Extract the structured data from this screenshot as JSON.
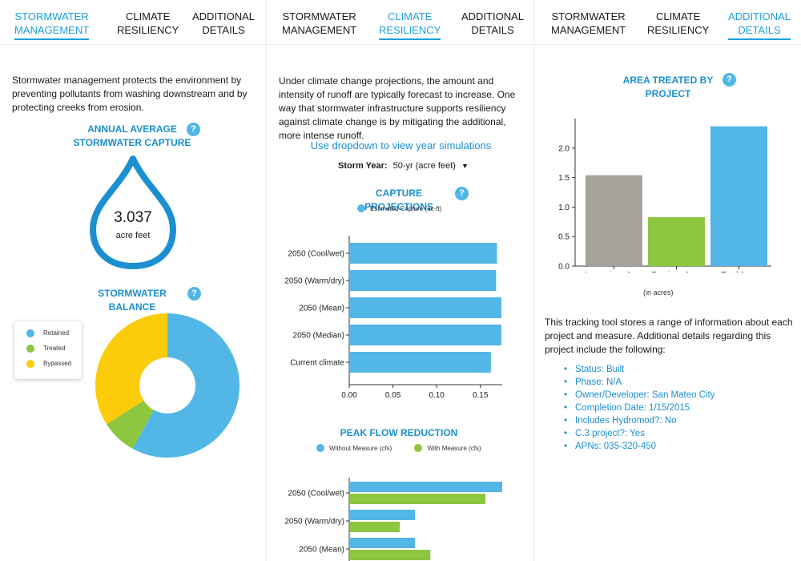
{
  "colors": {
    "accent": "#1ba1dd",
    "retained": "#52b6e6",
    "treated": "#8dc63f",
    "bypassed": "#fccc0a",
    "impervious": "#a6a19b"
  },
  "tabs": [
    "Stormwater Management",
    "Climate Resiliency",
    "Additional Details"
  ],
  "panel1": {
    "intro": "Stormwater management protects the environment by preventing pollutants from washing downstream and by protecting creeks from erosion.",
    "capture_title": "Annual Average Stormwater Capture",
    "capture_value": "3.037",
    "capture_unit": "acre feet",
    "balance_title": "Stormwater Balance",
    "help_glyph": "?"
  },
  "panel2": {
    "intro": "Under climate change projections, the amount and intensity of runoff are typically forecast to increase. One way that stormwater infrastructure supports resiliency against climate change is by mitigating the additional, more intense runoff.",
    "dropdown_prompt": "Use dropdown to view year simulations",
    "storm_year_label": "Storm Year:",
    "storm_year_value": "50-yr (acre feet)",
    "capture_proj_title": "Capture Projections",
    "peak_flow_title": "Peak Flow Reduction"
  },
  "panel3": {
    "area_title": "Area Treated by Project",
    "area_unit_note": "(in acres)",
    "intro": "This tracking tool stores a range of information about each project and measure. Additional details regarding this project include the following:",
    "details": [
      "Status: Built",
      "Phase: N/A",
      "Owner/Developer: San Mateo City",
      "Completion Date: 1/15/2015",
      "Includes Hydromod?: No",
      "C.3 project?: Yes",
      "APNs: 035-320-450"
    ]
  },
  "chart_data": [
    {
      "type": "pie",
      "title": "Stormwater Balance",
      "categories": [
        "Retained",
        "Treated",
        "Bypassed"
      ],
      "values": [
        0.58,
        0.08,
        0.34
      ],
      "legend": "top-left"
    },
    {
      "type": "bar",
      "orientation": "horizontal",
      "title": "Capture Projections",
      "categories": [
        "2050 (Cool/wet)",
        "2050 (Warm/dry)",
        "2050 (Mean)",
        "2050 (Median)",
        "Current climate"
      ],
      "series": [
        {
          "name": "Estimated Capture (ac-ft)",
          "values": [
            0.169,
            0.168,
            0.174,
            0.174,
            0.162
          ]
        }
      ],
      "xticks": [
        "0.00",
        "0.05",
        "0.10",
        "0.15"
      ],
      "xlim": [
        0,
        0.175
      ]
    },
    {
      "type": "bar",
      "orientation": "horizontal",
      "title": "Peak Flow Reduction",
      "categories": [
        "2050 (Cool/wet)",
        "2050 (Warm/dry)",
        "2050 (Mean)"
      ],
      "series": [
        {
          "name": "Without Measure (cfs)",
          "values": [
            1.0,
            0.43,
            0.43
          ]
        },
        {
          "name": "With Measure (cfs)",
          "values": [
            0.89,
            0.33,
            0.53
          ]
        }
      ]
    },
    {
      "type": "bar",
      "title": "Area Treated by Project",
      "categories": [
        "Impervious Area",
        "Pervious Area",
        "Total Area"
      ],
      "values": [
        1.54,
        0.83,
        2.37
      ],
      "yticks": [
        "0.0",
        "0.5",
        "1.0",
        "1.5",
        "2.0"
      ],
      "ylim": [
        0,
        2.5
      ],
      "xlabel": "(in acres)"
    }
  ]
}
